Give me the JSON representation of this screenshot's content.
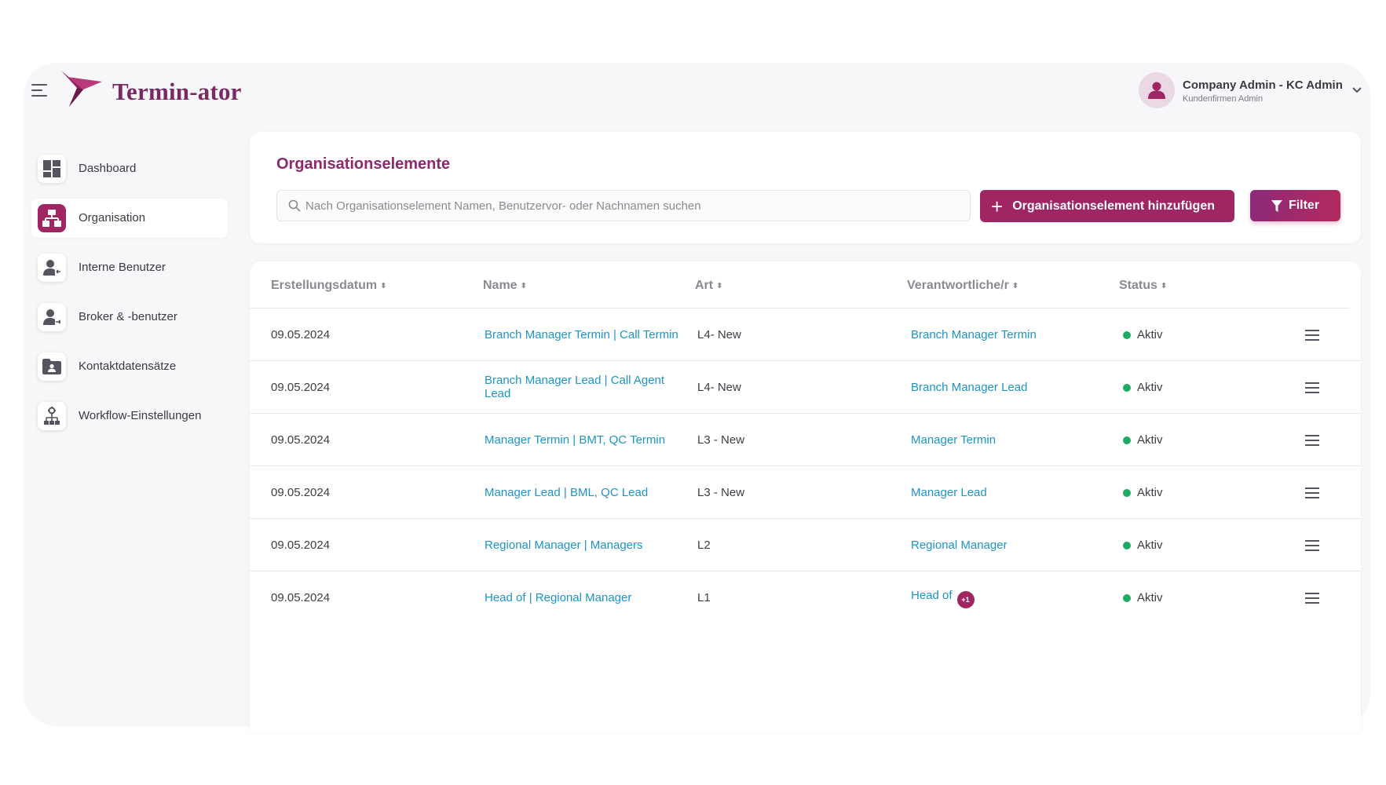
{
  "app": {
    "brand": "Termin-ator"
  },
  "user": {
    "name": "Company Admin - KC Admin",
    "role": "Kundenfirmen Admin"
  },
  "sidebar": {
    "items": [
      {
        "label": "Dashboard",
        "icon": "dashboard-icon",
        "active": false
      },
      {
        "label": "Organisation",
        "icon": "organisation-icon",
        "active": true
      },
      {
        "label": "Interne Benutzer",
        "icon": "user-icon",
        "active": false
      },
      {
        "label": "Broker & -benutzer",
        "icon": "user-transfer-icon",
        "active": false
      },
      {
        "label": "Kontaktdatensätze",
        "icon": "contact-folder-icon",
        "active": false
      },
      {
        "label": "Workflow-Einstellungen",
        "icon": "workflow-icon",
        "active": false
      }
    ]
  },
  "page": {
    "title": "Organisationselemente",
    "search_placeholder": "Nach Organisationselement Namen, Benutzervor- oder Nachnamen suchen",
    "add_button": "Organisationselement hinzufügen",
    "filter_button": "Filter"
  },
  "table": {
    "columns": [
      "Erstellungsdatum",
      "Name",
      "Art",
      "Verantwortliche/r",
      "Status"
    ],
    "rows": [
      {
        "date": "09.05.2024",
        "name": "Branch Manager Termin | Call Termin",
        "art": "L4- New",
        "responsible": "Branch Manager Termin",
        "extra": "",
        "status": "Aktiv"
      },
      {
        "date": "09.05.2024",
        "name": "Branch Manager Lead | Call Agent Lead",
        "art": "L4- New",
        "responsible": "Branch Manager Lead",
        "extra": "",
        "status": "Aktiv"
      },
      {
        "date": "09.05.2024",
        "name": "Manager Termin | BMT, QC Termin",
        "art": "L3 - New",
        "responsible": "Manager Termin",
        "extra": "",
        "status": "Aktiv"
      },
      {
        "date": "09.05.2024",
        "name": "Manager Lead | BML, QC Lead",
        "art": "L3 - New",
        "responsible": "Manager Lead",
        "extra": "",
        "status": "Aktiv"
      },
      {
        "date": "09.05.2024",
        "name": "Regional Manager | Managers",
        "art": "L2",
        "responsible": "Regional Manager",
        "extra": "",
        "status": "Aktiv"
      },
      {
        "date": "09.05.2024",
        "name": "Head of | Regional Manager",
        "art": "L1",
        "responsible": "Head of",
        "extra": "+1",
        "status": "Aktiv"
      }
    ]
  },
  "colors": {
    "brand": "#a02563",
    "title": "#8a2a6c",
    "link": "#1e94c8",
    "status_active": "#1faa64"
  }
}
